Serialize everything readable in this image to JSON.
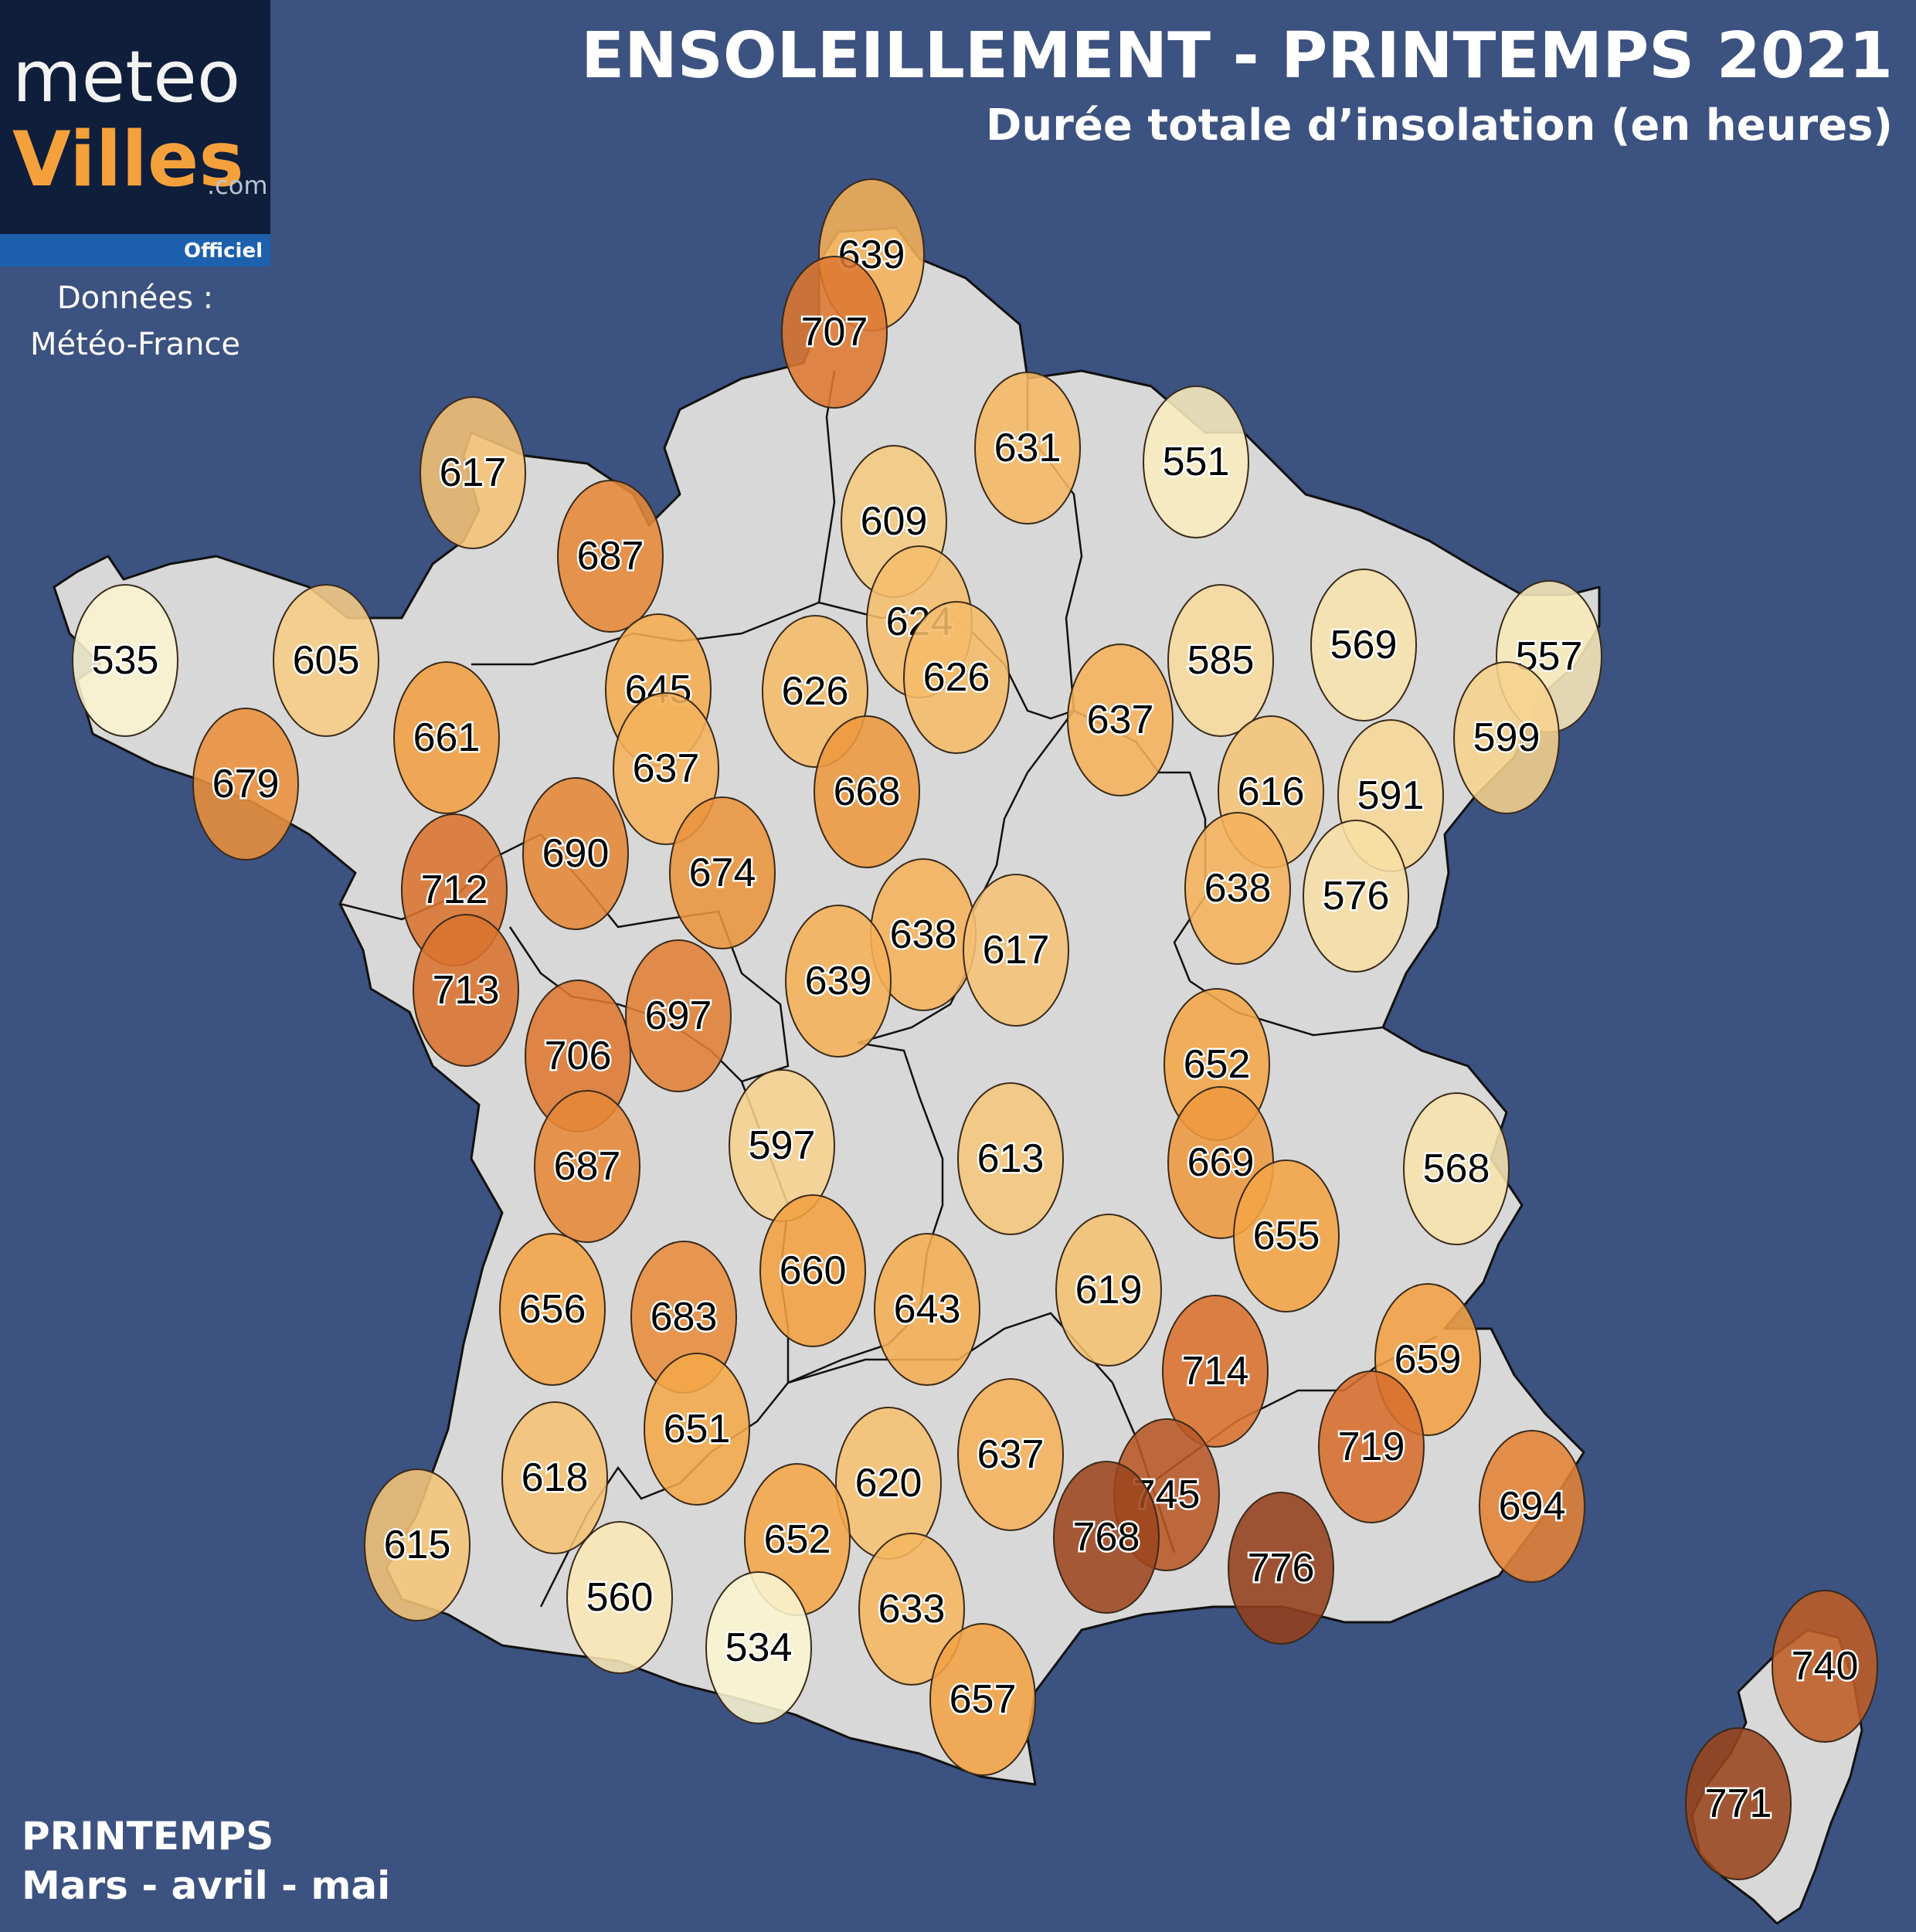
{
  "header": {
    "title": "ENSOLEILLEMENT - PRINTEMPS 2021",
    "subtitle": "Durée totale d’insolation (en heures)"
  },
  "logo": {
    "line1": "meteo",
    "line2": "Villes",
    "suffix": ".com",
    "badge": "Officiel"
  },
  "source": {
    "line1": "Données :",
    "line2": "Météo-France"
  },
  "footer": {
    "season": "PRINTEMPS",
    "months": "Mars - avril - mai"
  },
  "colors": {
    "background": "#3c5280",
    "land": "#d8d8d8",
    "scale_low": "#fbf7d4",
    "scale_mid": "#f4a444",
    "scale_high": "#8f3d1a"
  },
  "chart_data": {
    "type": "choropleth-bubbles",
    "unit": "heures",
    "values": [
      639,
      707,
      617,
      687,
      631,
      551,
      609,
      535,
      605,
      624,
      626,
      645,
      626,
      637,
      585,
      569,
      557,
      661,
      679,
      637,
      668,
      616,
      591,
      599,
      690,
      674,
      712,
      638,
      576,
      638,
      617,
      639,
      713,
      697,
      706,
      652,
      597,
      613,
      669,
      568,
      687,
      655,
      660,
      643,
      619,
      656,
      683,
      714,
      659,
      651,
      637,
      719,
      618,
      620,
      745,
      694,
      768,
      652,
      615,
      776,
      560,
      633,
      534,
      740,
      657,
      771
    ]
  }
}
